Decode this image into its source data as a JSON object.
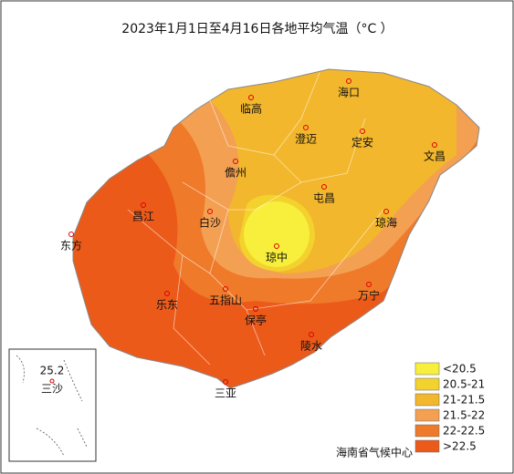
{
  "title": "2023年1月1日至4月16日各地平均气温（°C ）",
  "cities": [
    "海口",
    "临高",
    "澄迈",
    "定安",
    "文昌",
    "儋州",
    "屯昌",
    "昌江",
    "白沙",
    "琼海",
    "东方",
    "琼中",
    "乐东",
    "五指山",
    "万宁",
    "保亭",
    "陵水",
    "三亚"
  ],
  "inset": {
    "name": "三沙",
    "value": 25.2
  },
  "legend": [
    {
      "label": "<20.5",
      "color": "#f7ef3c"
    },
    {
      "label": "20.5-21",
      "color": "#f3d22e"
    },
    {
      "label": "21-21.5",
      "color": "#f2b72c"
    },
    {
      "label": "21.5-22",
      "color": "#f3a052"
    },
    {
      "label": "22-22.5",
      "color": "#ef7a2a"
    },
    {
      "label": ">22.5",
      "color": "#ec5a1a"
    }
  ],
  "source": "海南省气候中心"
}
